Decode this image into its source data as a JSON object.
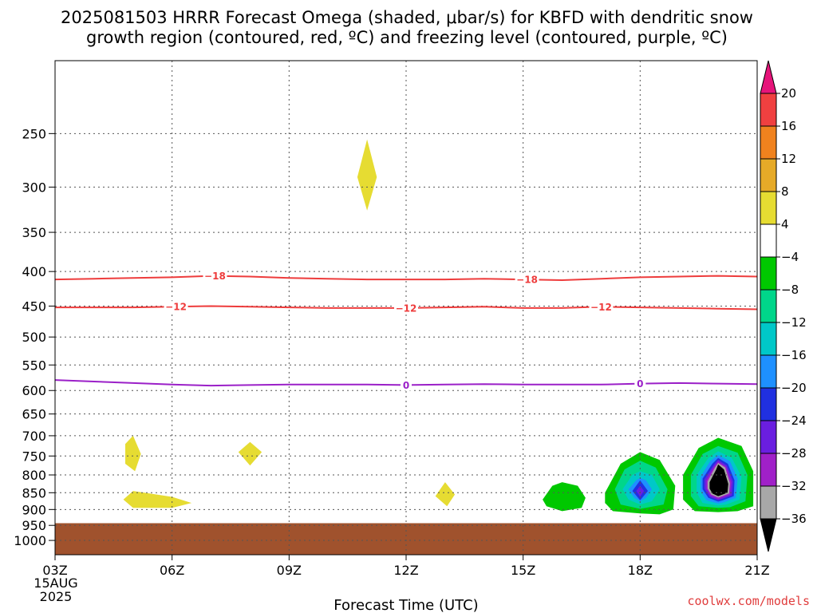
{
  "header": {
    "title_line1": "2025081503 HRRR Forecast Omega (shaded, μbar/s) for KBFD with dendritic snow",
    "title_line2": "growth region (contoured, red, ºC) and freezing level (contoured, purple, ºC)"
  },
  "footer": {
    "credit": "coolwx.com/models",
    "date_line1": "15AUG",
    "date_line2": "2025"
  },
  "chart_data": {
    "type": "contour",
    "title": "2025081503 HRRR Forecast Omega (shaded, μbar/s) for KBFD with dendritic snow growth region (contoured, red, ºC) and freezing level (contoured, purple, ºC)",
    "xlabel": "Forecast Time (UTC)",
    "ylabel": "",
    "x_unit": "forecast hour (UTC, 15 Aug 2025)",
    "xlim": [
      3,
      21
    ],
    "x_ticks": [
      3,
      6,
      9,
      12,
      15,
      18,
      21
    ],
    "x_tick_labels": [
      "03Z",
      "06Z",
      "09Z",
      "12Z",
      "15Z",
      "18Z",
      "21Z"
    ],
    "y_unit": "pressure (hPa)",
    "ylim": [
      1050,
      195
    ],
    "y_ticks": [
      250,
      300,
      350,
      400,
      450,
      500,
      550,
      600,
      650,
      700,
      750,
      800,
      850,
      900,
      950,
      1000
    ],
    "y_tick_labels": [
      "250",
      "300",
      "350",
      "400",
      "450",
      "500",
      "550",
      "600",
      "650",
      "700",
      "750",
      "800",
      "850",
      "900",
      "950",
      "1000"
    ],
    "grid": true,
    "colorbar": {
      "placement": "right",
      "levels": [
        -36,
        -32,
        -28,
        -24,
        -20,
        -16,
        -12,
        -8,
        -4,
        4,
        8,
        12,
        16,
        20
      ],
      "tick_labels": [
        "−36",
        "−32",
        "−28",
        "−24",
        "−20",
        "−16",
        "−12",
        "−8",
        "−4",
        "4",
        "8",
        "12",
        "16",
        "20"
      ],
      "colors": {
        "below_-36": "#000000",
        "-36_-32": "#a8a8a8",
        "-32_-28": "#a020c8",
        "-28_-24": "#6a1ee0",
        "-24_-20": "#2030e0",
        "-20_-16": "#1e90ff",
        "-16_-12": "#00c8c8",
        "-12_-8": "#00d68a",
        "-8_-4": "#00c800",
        "-4_4": "#ffffff",
        "4_8": "#e6dc32",
        "8_12": "#e6aa28",
        "12_16": "#f0821e",
        "16_20": "#f04040",
        "above_20": "#e6147a"
      }
    },
    "terrain": {
      "color": "#a0522d",
      "top_hPa": 943
    },
    "contours": [
      {
        "label": "-18",
        "color": "#ee3c3c",
        "x": [
          3,
          4,
          5,
          6,
          7,
          8,
          9,
          10,
          11,
          12,
          13,
          14,
          15,
          16,
          17,
          18,
          19,
          20,
          21
        ],
        "y": [
          411,
          410,
          409,
          408,
          406,
          407,
          409,
          410,
          411,
          411,
          411,
          410,
          411,
          412,
          410,
          408,
          407,
          406,
          407
        ],
        "label_x": [
          7.1,
          15.1
        ]
      },
      {
        "label": "-12",
        "color": "#ee3c3c",
        "x": [
          3,
          4,
          5,
          6,
          7,
          8,
          9,
          10,
          11,
          12,
          13,
          14,
          15,
          16,
          17,
          18,
          19,
          20,
          21
        ],
        "y": [
          452,
          452,
          452,
          451,
          450,
          451,
          452,
          453,
          453,
          453,
          452,
          451,
          453,
          453,
          451,
          452,
          453,
          454,
          455
        ],
        "label_x": [
          6.1,
          12.0,
          17.0
        ]
      },
      {
        "label": "0",
        "color": "#9b20c8",
        "x": [
          3,
          4,
          5,
          6,
          7,
          8,
          9,
          10,
          11,
          12,
          13,
          14,
          15,
          16,
          17,
          18,
          19,
          20,
          21
        ],
        "y": [
          579,
          582,
          585,
          588,
          590,
          589,
          588,
          588,
          588,
          589,
          588,
          587,
          588,
          588,
          588,
          586,
          585,
          586,
          587
        ],
        "label_x": [
          12.0,
          18.0
        ]
      }
    ],
    "regions": [
      {
        "name": "omega-4-8-aloft",
        "level": "4_8",
        "x": [
          10.75,
          11.0,
          11.25,
          11.0
        ],
        "y": [
          290,
          255,
          290,
          325
        ]
      },
      {
        "name": "omega-4-8-a",
        "level": "4_8",
        "x": [
          4.8,
          5.0,
          5.2,
          5.05,
          4.8
        ],
        "y": [
          720,
          700,
          745,
          790,
          770
        ]
      },
      {
        "name": "omega-4-8-b",
        "level": "4_8",
        "x": [
          7.7,
          8.0,
          8.3,
          8.0
        ],
        "y": [
          740,
          715,
          740,
          775
        ]
      },
      {
        "name": "omega-4-8-c",
        "level": "4_8",
        "x": [
          4.75,
          5.0,
          6.0,
          6.5,
          6.0,
          5.0
        ],
        "y": [
          870,
          845,
          862,
          880,
          895,
          895
        ]
      },
      {
        "name": "omega-4-8-d",
        "level": "4_8",
        "x": [
          12.75,
          13.0,
          13.25,
          13.05
        ],
        "y": [
          860,
          820,
          855,
          890
        ]
      },
      {
        "name": "omega-neg-16h",
        "level": "-8_-4",
        "x": [
          15.5,
          15.75,
          16.0,
          16.4,
          16.6,
          16.5,
          16.0,
          15.6
        ],
        "y": [
          870,
          830,
          820,
          830,
          865,
          895,
          905,
          890
        ]
      },
      {
        "name": "omega-neg-18h-8",
        "level": "-8_-4",
        "x": [
          17.1,
          17.5,
          18.0,
          18.5,
          18.9,
          18.85,
          18.5,
          18.0,
          17.3,
          17.1
        ],
        "y": [
          850,
          770,
          740,
          760,
          830,
          900,
          915,
          912,
          905,
          880
        ]
      },
      {
        "name": "omega-neg-18h-12",
        "level": "-12_-8",
        "x": [
          17.35,
          17.6,
          18.0,
          18.4,
          18.7,
          18.6,
          18.0,
          17.5
        ],
        "y": [
          840,
          785,
          762,
          780,
          840,
          885,
          898,
          885
        ]
      },
      {
        "name": "omega-neg-18h-16",
        "level": "-16_-12",
        "x": [
          17.55,
          17.8,
          18.0,
          18.3,
          18.5,
          18.3,
          18.0,
          17.7
        ],
        "y": [
          840,
          800,
          790,
          800,
          840,
          875,
          885,
          870
        ]
      },
      {
        "name": "omega-neg-18h-20",
        "level": "-20_-16",
        "x": [
          17.7,
          17.9,
          18.0,
          18.15,
          18.3,
          18.15,
          18.0,
          17.85
        ],
        "y": [
          840,
          815,
          808,
          815,
          840,
          865,
          875,
          865
        ]
      },
      {
        "name": "omega-neg-18h-24",
        "level": "-24_-20",
        "x": [
          17.8,
          18.0,
          18.2,
          18.0
        ],
        "y": [
          845,
          815,
          845,
          872
        ]
      },
      {
        "name": "omega-neg-18h-28",
        "level": "-28_-24",
        "x": [
          17.9,
          18.0,
          18.1,
          18.0
        ],
        "y": [
          845,
          830,
          845,
          862
        ]
      },
      {
        "name": "omega-neg-20h-8",
        "level": "-8_-4",
        "x": [
          19.1,
          19.5,
          20.0,
          20.6,
          20.9,
          20.9,
          20.5,
          20.0,
          19.4,
          19.1
        ],
        "y": [
          800,
          730,
          705,
          725,
          790,
          890,
          905,
          908,
          905,
          870
        ]
      },
      {
        "name": "omega-neg-20h-12",
        "level": "-12_-8",
        "x": [
          19.3,
          19.6,
          20.0,
          20.5,
          20.75,
          20.7,
          20.3,
          20.0,
          19.5,
          19.3
        ],
        "y": [
          800,
          745,
          725,
          742,
          800,
          875,
          893,
          895,
          890,
          860
        ]
      },
      {
        "name": "omega-neg-20h-16",
        "level": "-16_-12",
        "x": [
          19.45,
          19.75,
          20.0,
          20.35,
          20.6,
          20.55,
          20.2,
          20.0,
          19.6,
          19.45
        ],
        "y": [
          800,
          755,
          738,
          755,
          805,
          870,
          885,
          888,
          880,
          850
        ]
      },
      {
        "name": "omega-neg-20h-20",
        "level": "-20_-16",
        "x": [
          19.55,
          19.8,
          20.0,
          20.3,
          20.5,
          20.45,
          20.15,
          20.0,
          19.7,
          19.55
        ],
        "y": [
          805,
          763,
          748,
          763,
          810,
          865,
          878,
          882,
          872,
          845
        ]
      },
      {
        "name": "omega-neg-20h-24",
        "level": "-24_-20",
        "x": [
          19.6,
          19.85,
          20.0,
          20.25,
          20.42,
          20.4,
          20.1,
          20.0,
          19.75,
          19.6
        ],
        "y": [
          810,
          770,
          755,
          770,
          815,
          860,
          873,
          876,
          865,
          840
        ]
      },
      {
        "name": "omega-neg-20h-28",
        "level": "-28_-24",
        "x": [
          19.65,
          19.88,
          20.0,
          20.22,
          20.38,
          20.35,
          20.05,
          20.0,
          19.78,
          19.65
        ],
        "y": [
          812,
          775,
          760,
          775,
          818,
          858,
          870,
          872,
          862,
          838
        ]
      },
      {
        "name": "omega-neg-20h-32",
        "level": "-32_-28",
        "x": [
          19.7,
          19.9,
          20.0,
          20.2,
          20.34,
          20.3,
          20.05,
          20.0,
          19.8,
          19.7
        ],
        "y": [
          815,
          778,
          765,
          778,
          820,
          855,
          866,
          868,
          858,
          838
        ]
      },
      {
        "name": "omega-neg-20h-36",
        "level": "-36_-32",
        "x": [
          19.73,
          19.92,
          20.0,
          20.18,
          20.3,
          20.28,
          20.05,
          20.0,
          19.82,
          19.73
        ],
        "y": [
          818,
          780,
          768,
          780,
          822,
          852,
          862,
          864,
          855,
          838
        ]
      },
      {
        "name": "omega-neg-20h-core",
        "level": "below_-36",
        "x": [
          19.78,
          19.95,
          20.0,
          20.15,
          20.26,
          20.24,
          20.05,
          20.0,
          19.85,
          19.78
        ],
        "y": [
          820,
          785,
          772,
          785,
          825,
          850,
          858,
          860,
          852,
          838
        ]
      }
    ]
  }
}
